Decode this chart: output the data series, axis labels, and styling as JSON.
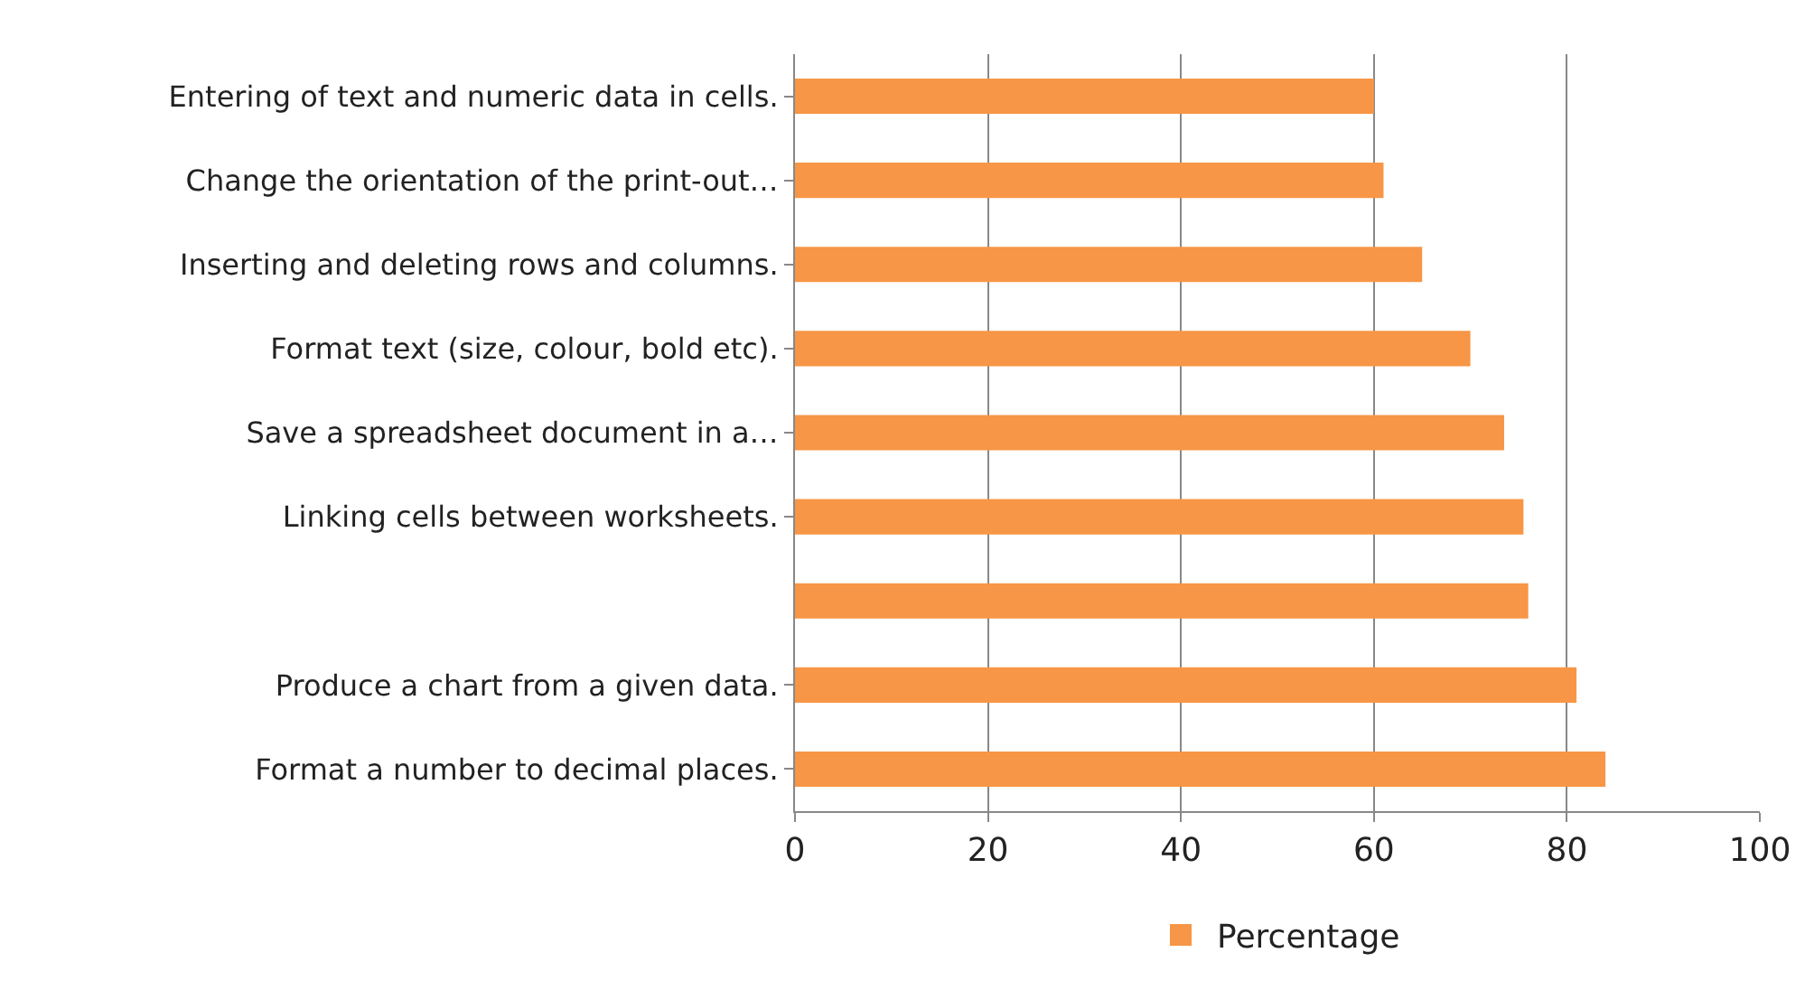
{
  "chart_data": {
    "type": "bar",
    "orientation": "horizontal",
    "categories": [
      "Entering of text and numeric data in cells.",
      "Change the orientation of the print-out…",
      "Inserting and deleting rows and columns.",
      "Format text (size, colour, bold etc).",
      "Save a spreadsheet document in a…",
      "Linking cells between worksheets.",
      null,
      "Produce a chart from a given data.",
      "Format a number to decimal places."
    ],
    "series": [
      {
        "name": "Percentage",
        "color": "#f79646",
        "values": [
          60,
          61,
          65,
          70,
          73.5,
          75.5,
          76,
          81,
          84
        ]
      }
    ],
    "xlim": [
      0,
      100
    ],
    "xticks": [
      0,
      20,
      40,
      60,
      80,
      100
    ],
    "grid": "x",
    "legend": "bottom"
  }
}
